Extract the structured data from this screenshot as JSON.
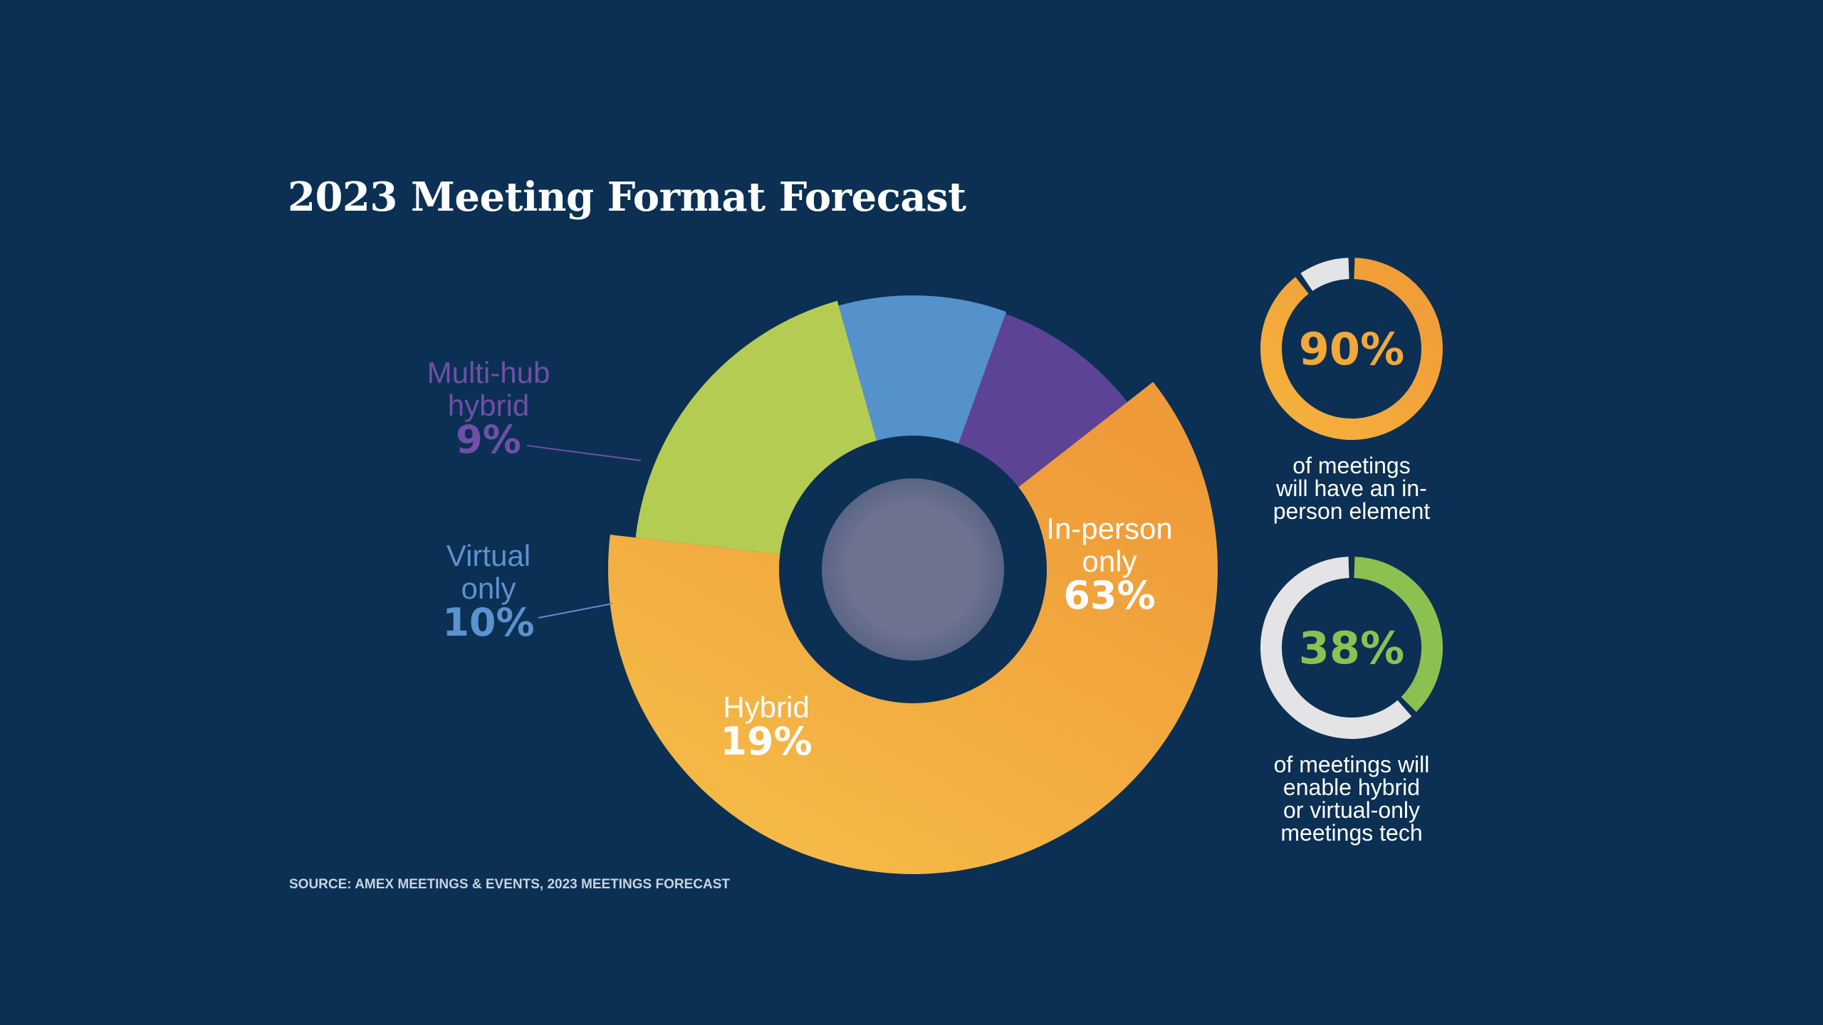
{
  "title": "2023 Meeting Format Forecast",
  "source": "SOURCE: AMEX MEETINGS & EVENTS, 2023 MEETINGS FORECAST",
  "chart_data": [
    {
      "type": "pie",
      "title": "2023 Meeting Format Forecast",
      "style": "donut",
      "slices": [
        {
          "name_lines": [
            "In-person",
            "only"
          ],
          "label": "In-person only",
          "value": 63,
          "value_label": "63%",
          "color": "#f3ab3c"
        },
        {
          "name_lines": [
            "Hybrid"
          ],
          "label": "Hybrid",
          "value": 19,
          "value_label": "19%",
          "color": "#b5cc52"
        },
        {
          "name_lines": [
            "Virtual",
            "only"
          ],
          "label": "Virtual only",
          "value": 10,
          "value_label": "10%",
          "color": "#5592cc"
        },
        {
          "name_lines": [
            "Multi-hub",
            "hybrid"
          ],
          "label": "Multi-hub hybrid",
          "value": 9,
          "value_label": "9%",
          "color": "#5d4396"
        }
      ]
    },
    {
      "type": "pie",
      "style": "ring-gauge",
      "value": 90,
      "value_label": "90%",
      "color": "#f3a83a",
      "caption_lines": [
        "of meetings",
        "will have an in-",
        "person element"
      ]
    },
    {
      "type": "pie",
      "style": "ring-gauge",
      "value": 38,
      "value_label": "38%",
      "color": "#8cc152",
      "caption_lines": [
        "of meetings will",
        "enable hybrid",
        "or virtual-only",
        "meetings tech"
      ]
    }
  ],
  "colors": {
    "background": "#0b3054",
    "gauge_track": "#e4e4e6",
    "inperson_gradient_light": "#f7c04a",
    "inperson_gradient_dark": "#ee9a38",
    "hub": "#6f7690",
    "hub_ring": "#5d6a86"
  }
}
